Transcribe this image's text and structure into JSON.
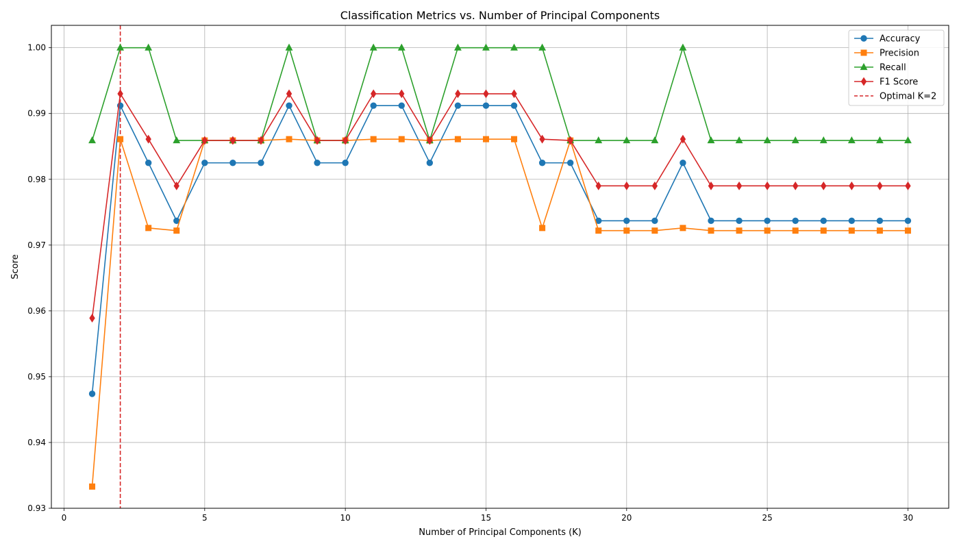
{
  "chart_data": {
    "type": "line",
    "title": "Classification Metrics vs. Number of Principal Components",
    "xlabel": "Number of Principal Components (K)",
    "ylabel": "Score",
    "xlim": [
      -0.45,
      31.45
    ],
    "ylim": [
      0.93,
      1.0034
    ],
    "xticks": [
      0,
      5,
      10,
      15,
      20,
      25,
      30
    ],
    "yticks": [
      0.93,
      0.94,
      0.95,
      0.96,
      0.97,
      0.98,
      0.99,
      1.0
    ],
    "ytick_labels": [
      "0.93",
      "0.94",
      "0.95",
      "0.96",
      "0.97",
      "0.98",
      "0.99",
      "1.00"
    ],
    "grid": true,
    "legend_position": "top-right",
    "x": [
      1,
      2,
      3,
      4,
      5,
      6,
      7,
      8,
      9,
      10,
      11,
      12,
      13,
      14,
      15,
      16,
      17,
      18,
      19,
      20,
      21,
      22,
      23,
      24,
      25,
      26,
      27,
      28,
      29,
      30
    ],
    "series": [
      {
        "name": "Accuracy",
        "color": "#1f77b4",
        "marker": "circle",
        "values": [
          0.9474,
          0.9912,
          0.9825,
          0.9737,
          0.9825,
          0.9825,
          0.9825,
          0.9912,
          0.9825,
          0.9825,
          0.9912,
          0.9912,
          0.9825,
          0.9912,
          0.9912,
          0.9912,
          0.9825,
          0.9825,
          0.9737,
          0.9737,
          0.9737,
          0.9825,
          0.9737,
          0.9737,
          0.9737,
          0.9737,
          0.9737,
          0.9737,
          0.9737,
          0.9737
        ]
      },
      {
        "name": "Precision",
        "color": "#ff7f0e",
        "marker": "square",
        "values": [
          0.9333,
          0.9861,
          0.9726,
          0.9722,
          0.9859,
          0.9859,
          0.9859,
          0.9861,
          0.9859,
          0.9859,
          0.9861,
          0.9861,
          0.9859,
          0.9861,
          0.9861,
          0.9861,
          0.9726,
          0.9859,
          0.9722,
          0.9722,
          0.9722,
          0.9726,
          0.9722,
          0.9722,
          0.9722,
          0.9722,
          0.9722,
          0.9722,
          0.9722,
          0.9722
        ]
      },
      {
        "name": "Recall",
        "color": "#2ca02c",
        "marker": "triangle",
        "values": [
          0.9859,
          1.0,
          1.0,
          0.9859,
          0.9859,
          0.9859,
          0.9859,
          1.0,
          0.9859,
          0.9859,
          1.0,
          1.0,
          0.9859,
          1.0,
          1.0,
          1.0,
          1.0,
          0.9859,
          0.9859,
          0.9859,
          0.9859,
          1.0,
          0.9859,
          0.9859,
          0.9859,
          0.9859,
          0.9859,
          0.9859,
          0.9859,
          0.9859
        ]
      },
      {
        "name": "F1 Score",
        "color": "#d62728",
        "marker": "diamond",
        "values": [
          0.9589,
          0.993,
          0.9861,
          0.979,
          0.9859,
          0.9859,
          0.9859,
          0.993,
          0.9859,
          0.9859,
          0.993,
          0.993,
          0.9859,
          0.993,
          0.993,
          0.993,
          0.9861,
          0.9859,
          0.979,
          0.979,
          0.979,
          0.9861,
          0.979,
          0.979,
          0.979,
          0.979,
          0.979,
          0.979,
          0.979,
          0.979
        ]
      }
    ],
    "annotations": [
      {
        "type": "vline",
        "x": 2,
        "label": "Optimal K=2",
        "color": "#d62728",
        "style": "dashed"
      }
    ]
  }
}
